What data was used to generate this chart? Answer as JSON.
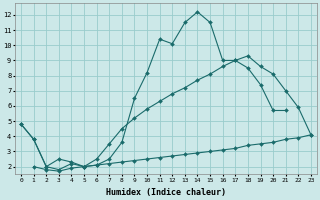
{
  "xlabel": "Humidex (Indice chaleur)",
  "bg_color": "#cce8e8",
  "grid_color": "#99cccc",
  "line_color": "#1a6b6b",
  "markersize": 2.0,
  "linewidth": 0.8,
  "xlim": [
    -0.5,
    23.5
  ],
  "ylim": [
    1.5,
    12.8
  ],
  "xticks": [
    0,
    1,
    2,
    3,
    4,
    5,
    6,
    7,
    8,
    9,
    10,
    11,
    12,
    13,
    14,
    15,
    16,
    17,
    18,
    19,
    20,
    21,
    22,
    23
  ],
  "yticks": [
    2,
    3,
    4,
    5,
    6,
    7,
    8,
    9,
    10,
    11,
    12
  ],
  "line1_x": [
    0,
    1,
    2,
    3,
    4,
    5,
    6,
    7,
    8,
    9,
    10,
    11,
    12,
    13,
    14,
    15,
    16,
    17,
    18,
    19,
    20,
    21
  ],
  "line1_y": [
    4.8,
    3.8,
    2.0,
    1.8,
    2.2,
    2.0,
    2.1,
    2.5,
    3.6,
    6.5,
    8.2,
    10.4,
    10.1,
    11.5,
    12.2,
    11.5,
    9.0,
    9.0,
    8.5,
    7.4,
    5.7,
    5.7
  ],
  "line2_x": [
    0,
    1,
    2,
    3,
    4,
    5,
    6,
    7,
    8,
    9,
    10,
    11,
    12,
    13,
    14,
    15,
    16,
    17,
    18,
    19,
    20,
    21,
    22,
    23
  ],
  "line2_y": [
    4.8,
    3.8,
    2.0,
    2.5,
    2.3,
    2.0,
    2.5,
    3.5,
    4.5,
    5.2,
    5.8,
    6.3,
    6.8,
    7.2,
    7.7,
    8.1,
    8.6,
    9.0,
    9.3,
    8.6,
    8.1,
    7.0,
    5.9,
    4.1
  ],
  "line3_x": [
    1,
    2,
    3,
    4,
    5,
    6,
    7,
    8,
    9,
    10,
    11,
    12,
    13,
    14,
    15,
    16,
    17,
    18,
    19,
    20,
    21,
    22,
    23
  ],
  "line3_y": [
    2.0,
    1.8,
    1.7,
    1.9,
    2.0,
    2.1,
    2.2,
    2.3,
    2.4,
    2.5,
    2.6,
    2.7,
    2.8,
    2.9,
    3.0,
    3.1,
    3.2,
    3.4,
    3.5,
    3.6,
    3.8,
    3.9,
    4.1
  ]
}
